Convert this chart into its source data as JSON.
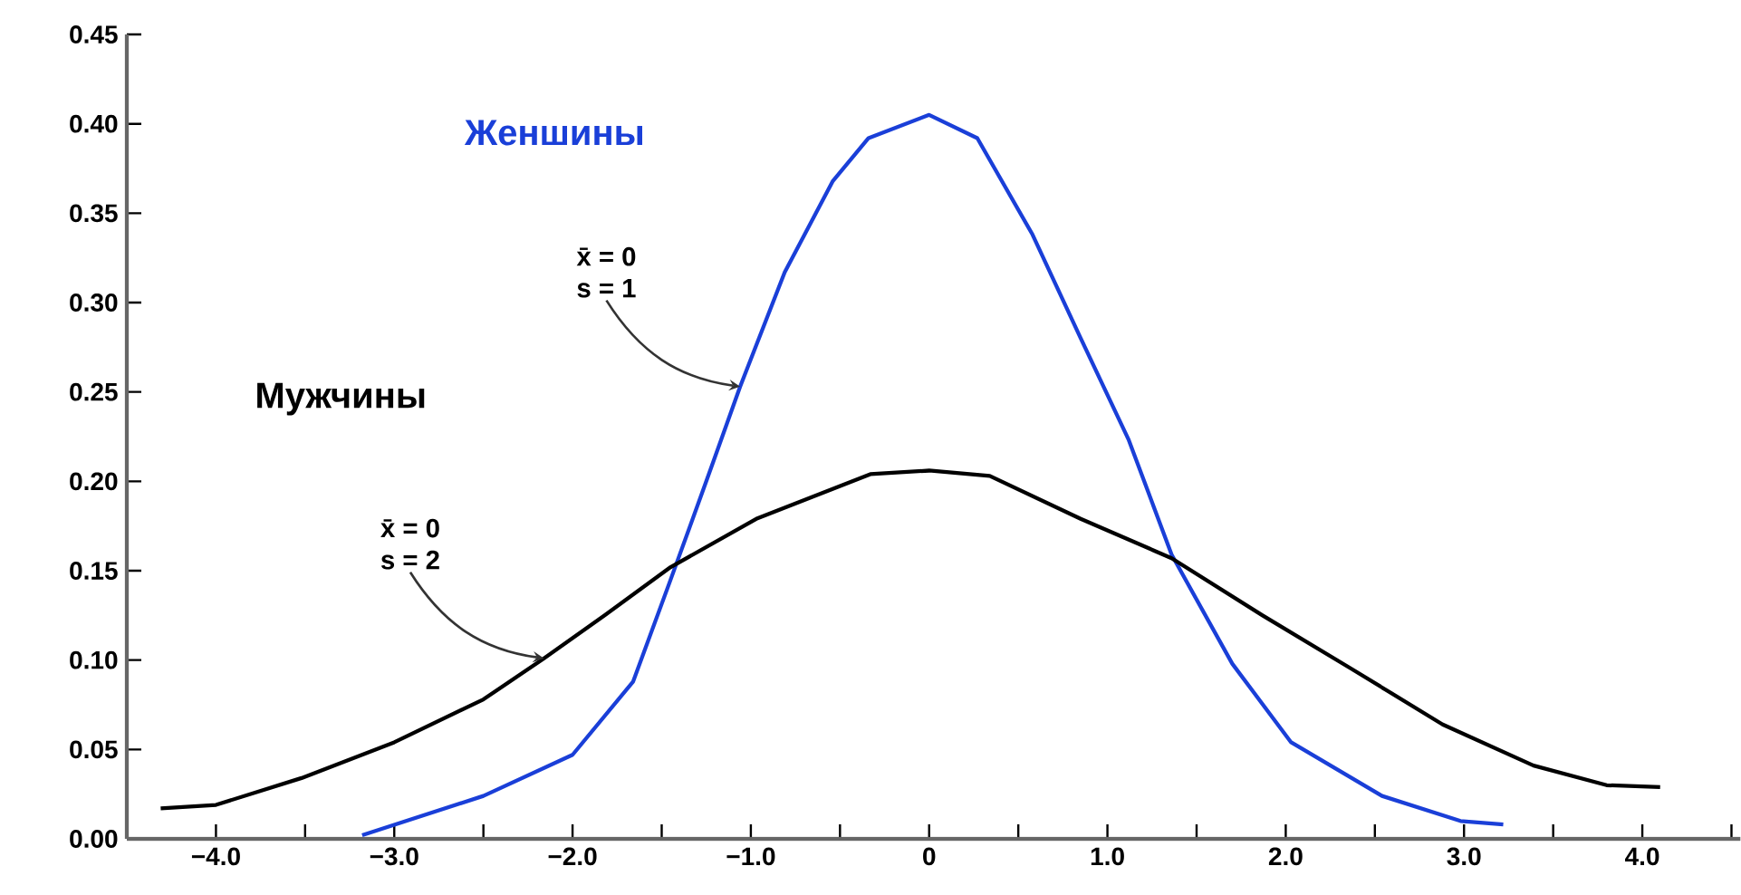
{
  "chart_data": {
    "type": "line",
    "xlim": [
      -4.5,
      4.55
    ],
    "ylim": [
      0,
      0.45
    ],
    "xticks": [
      {
        "value": -4,
        "label": "−4.0"
      },
      {
        "value": -3.5,
        "label": null
      },
      {
        "value": -3,
        "label": "−3.0"
      },
      {
        "value": -2.5,
        "label": null
      },
      {
        "value": -2,
        "label": "−2.0"
      },
      {
        "value": -1.5,
        "label": null
      },
      {
        "value": -1,
        "label": "−1.0"
      },
      {
        "value": -0.5,
        "label": null
      },
      {
        "value": 0,
        "label": "0"
      },
      {
        "value": 0.5,
        "label": null
      },
      {
        "value": 1,
        "label": "1.0"
      },
      {
        "value": 1.5,
        "label": null
      },
      {
        "value": 2,
        "label": "2.0"
      },
      {
        "value": 2.5,
        "label": null
      },
      {
        "value": 3,
        "label": "3.0"
      },
      {
        "value": 3.5,
        "label": null
      },
      {
        "value": 4,
        "label": "4.0"
      },
      {
        "value": 4.5,
        "label": null
      }
    ],
    "yticks": [
      {
        "value": 0,
        "label": "0.00"
      },
      {
        "value": 0.05,
        "label": "0.05"
      },
      {
        "value": 0.1,
        "label": "0.10"
      },
      {
        "value": 0.15,
        "label": "0.15"
      },
      {
        "value": 0.2,
        "label": "0.20"
      },
      {
        "value": 0.25,
        "label": "0.25"
      },
      {
        "value": 0.3,
        "label": "0.30"
      },
      {
        "value": 0.35,
        "label": "0.35"
      },
      {
        "value": 0.4,
        "label": "0.40"
      },
      {
        "value": 0.45,
        "label": "0.45"
      }
    ],
    "series": [
      {
        "name": "Женшины",
        "color": "#1a3fd8",
        "x": [
          -3.18,
          -2.5,
          -2.0,
          -1.66,
          -1.45,
          -1.25,
          -1.06,
          -0.81,
          -0.54,
          -0.34,
          0,
          0.27,
          0.58,
          0.85,
          1.12,
          1.36,
          1.7,
          2.03,
          2.54,
          2.98,
          3.22
        ],
        "values": [
          0.002,
          0.024,
          0.047,
          0.088,
          0.145,
          0.2,
          0.253,
          0.317,
          0.368,
          0.392,
          0.405,
          0.392,
          0.338,
          0.28,
          0.223,
          0.159,
          0.098,
          0.054,
          0.024,
          0.01,
          0.008
        ]
      },
      {
        "name": "Мужчины",
        "color": "#000000",
        "x": [
          -4.31,
          -4.0,
          -3.52,
          -3.0,
          -2.5,
          -2.16,
          -1.82,
          -1.45,
          -0.97,
          -0.33,
          0,
          0.34,
          0.85,
          1.36,
          1.87,
          2.37,
          2.88,
          3.39,
          3.8,
          4.1
        ],
        "values": [
          0.017,
          0.019,
          0.034,
          0.054,
          0.078,
          0.101,
          0.125,
          0.152,
          0.179,
          0.204,
          0.206,
          0.203,
          0.179,
          0.157,
          0.125,
          0.095,
          0.064,
          0.041,
          0.03,
          0.029
        ]
      }
    ],
    "annotations": [
      "x̄ = 0",
      {
        "text": "s = 1",
        "x": -1.06,
        "y": 0.253
      },
      "x̄ = 0",
      {
        "text": "s = 2",
        "x": -2.16,
        "y": 0.101
      }
    ]
  }
}
